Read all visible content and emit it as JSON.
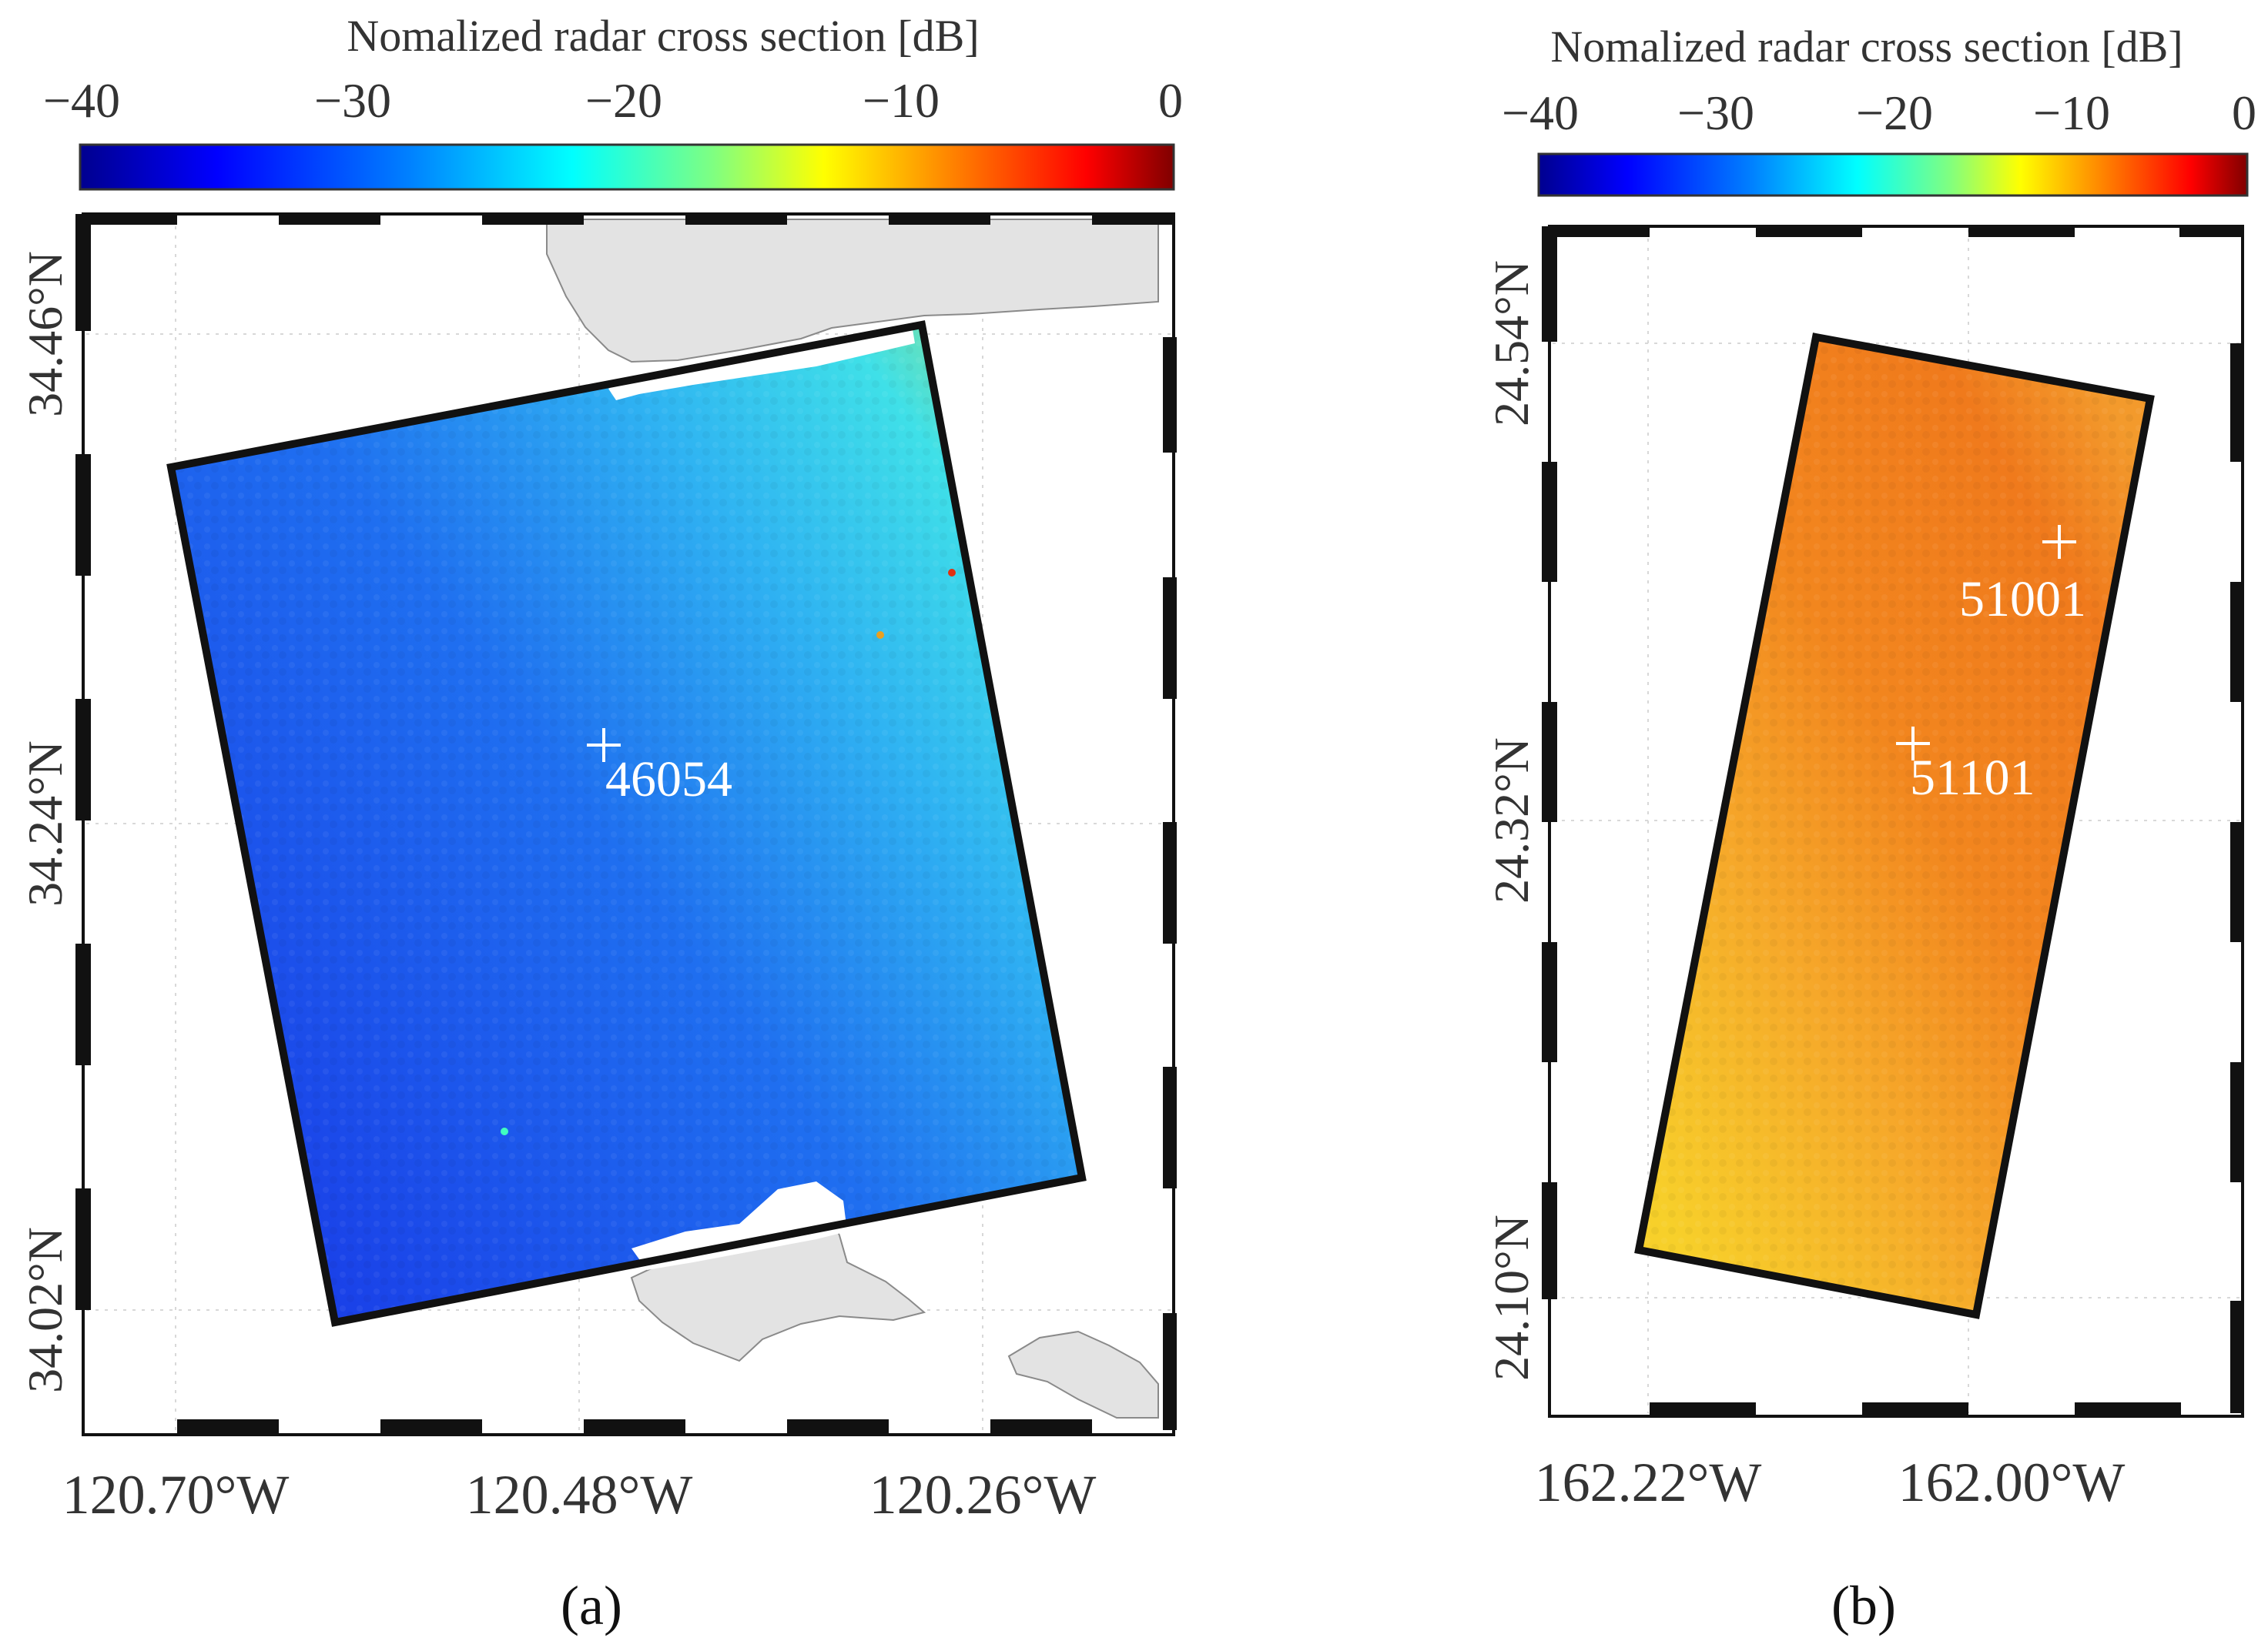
{
  "colormap": {
    "stops": [
      "#00008f",
      "#0000ff",
      "#0080ff",
      "#00ffff",
      "#80ff80",
      "#ffff00",
      "#ff8000",
      "#ff0000",
      "#800000"
    ]
  },
  "panels": [
    {
      "id": "a",
      "label": "(a)",
      "colorbar": {
        "title": "Nomalized radar cross section [dB]",
        "ticks": [
          "−40",
          "−30",
          "−20",
          "−10",
          "0"
        ]
      },
      "lat_labels": [
        "34.46°N",
        "34.24°N",
        "34.02°N"
      ],
      "lon_labels": [
        "120.70°W",
        "120.48°W",
        "120.26°W"
      ],
      "buoys": [
        "46054"
      ]
    },
    {
      "id": "b",
      "label": "(b)",
      "colorbar": {
        "title": "Nomalized radar cross section [dB]",
        "ticks": [
          "−40",
          "−30",
          "−20",
          "−10",
          "0"
        ]
      },
      "lat_labels": [
        "24.54°N",
        "24.32°N",
        "24.10°N"
      ],
      "lon_labels": [
        "162.22°W",
        "162.00°W"
      ],
      "buoys": [
        "51001",
        "51101"
      ]
    }
  ]
}
